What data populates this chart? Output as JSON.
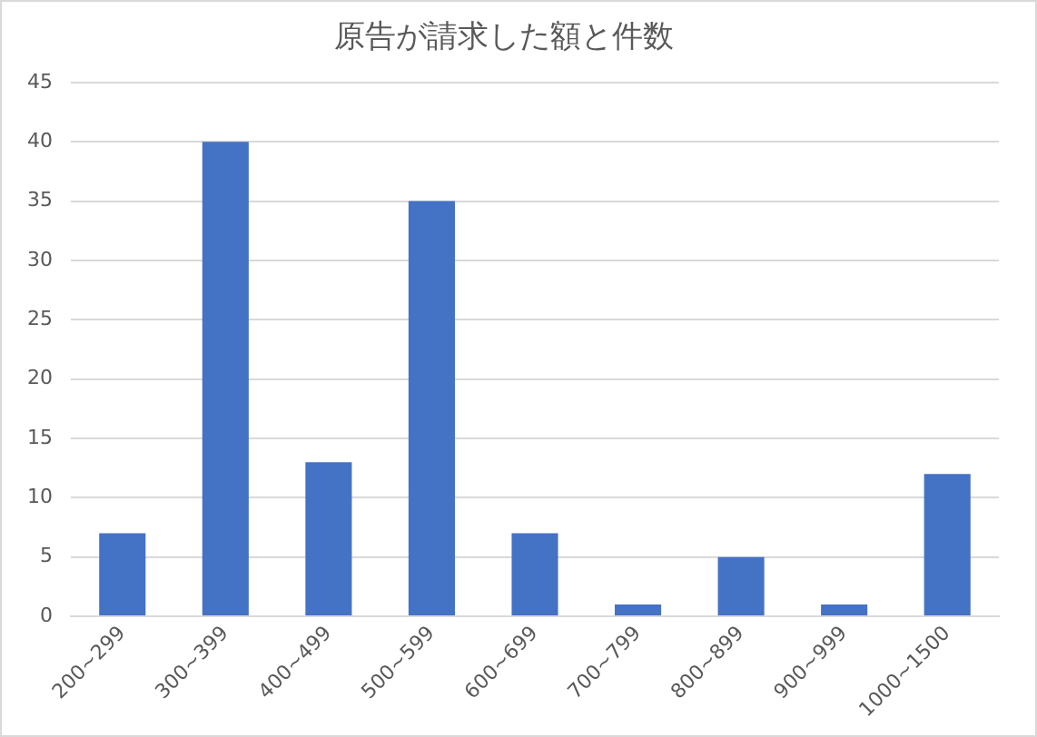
{
  "chart_data": {
    "type": "bar",
    "title": "原告が請求した額と件数",
    "categories": [
      "200~299",
      "300~399",
      "400~499",
      "500~599",
      "600~699",
      "700~799",
      "800~899",
      "900~999",
      "1000~1500"
    ],
    "values": [
      7,
      40,
      13,
      35,
      7,
      1,
      5,
      1,
      12
    ],
    "color": "#4472c4",
    "ylim": [
      0,
      45
    ],
    "yticks": [
      0,
      5,
      10,
      15,
      20,
      25,
      30,
      35,
      40,
      45
    ],
    "grid": "y",
    "legend": false
  }
}
